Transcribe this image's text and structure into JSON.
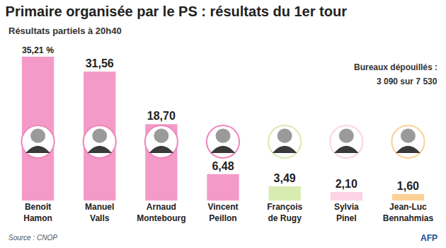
{
  "chart_data": {
    "type": "bar",
    "title": "Primaire organisée par le PS : résultats du 1er tour",
    "subtitle": "Résultats partiels à 20h40",
    "categories": [
      "Benoît Hamon",
      "Manuel Valls",
      "Arnaud Montebourg",
      "Vincent Peillon",
      "François de Rugy",
      "Sylvia Pinel",
      "Jean-Luc Bennahmias"
    ],
    "values": [
      35.21,
      31.56,
      18.7,
      6.48,
      3.49,
      2.1,
      1.6
    ],
    "value_labels": [
      "35,21 %",
      "31,56",
      "18,70",
      "6,48",
      "3,49",
      "2,10",
      "1,60"
    ],
    "colors": [
      "#f49ac8",
      "#f49ac8",
      "#f49ac8",
      "#f49ac8",
      "#d8ebb0",
      "#fbd3e5",
      "#fbd196"
    ],
    "data_labels": true,
    "tick_labels": "x",
    "annotations": [
      "Bureaux dépouillés :",
      "3 090 sur 7 530"
    ],
    "source": "Source : CNOP",
    "credit": "AFP"
  }
}
